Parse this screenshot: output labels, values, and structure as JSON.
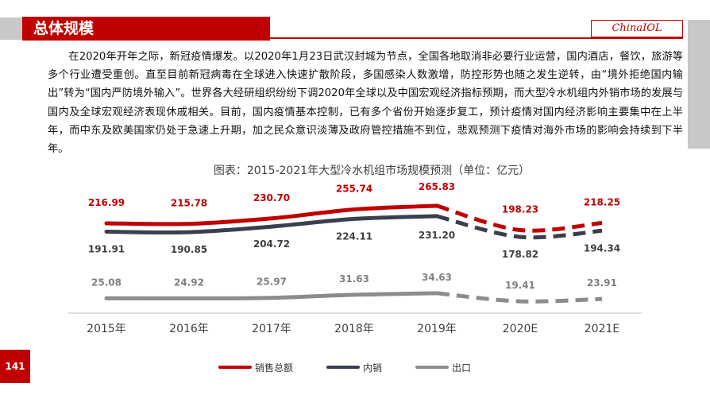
{
  "header": {
    "title": "总体规模",
    "logo": "ChinaIOL"
  },
  "paragraph": "在2020年开年之际，新冠疫情爆发。以2020年1月23日武汉封城为节点，全国各地取消非必要行业运营，国内酒店，餐饮，旅游等多个行业遭受重创。直至目前新冠病毒在全球进入快速扩散阶段，多国感染人数激增，防控形势也随之发生逆转，由“境外拒绝国内输出”转为“国内严防境外输入”。世界各大经研组织纷纷下调2020年全球以及中国宏观经济指标预期，而大型冷水机组内外销市场的发展与国内及全球宏观经济表现休戚相关。目前，国内疫情基本控制，已有多个省份开始逐步复工，预计疫情对国内经济影响主要集中在上半年，而中东及欧美国家仍处于急速上升期，加之民众意识淡薄及政府管控措施不到位，悲观预测下疫情对海外市场的影响会持续到下半年。",
  "page_number": "141",
  "colors": {
    "brand": "#c00000",
    "total": "#c00000",
    "domestic": "#3a3f4f",
    "export": "#8c8c8c"
  },
  "chart_data": {
    "type": "line",
    "title": "图表：2015-2021年大型冷水机组市场规模预测（单位：亿元）",
    "categories": [
      "2015年",
      "2016年",
      "2017年",
      "2018年",
      "2019年",
      "2020E",
      "2021E"
    ],
    "forecast_from_index": 4,
    "legend_position": "bottom",
    "grid": false,
    "series": [
      {
        "name": "销售总额",
        "values": [
          216.99,
          215.78,
          230.7,
          255.74,
          265.83,
          198.23,
          218.25
        ],
        "labels": [
          "216.99",
          "215.78",
          "230.70",
          "255.74",
          "265.83",
          "198.23",
          "218.25"
        ]
      },
      {
        "name": "内销",
        "values": [
          191.91,
          190.85,
          204.72,
          224.11,
          231.2,
          178.82,
          194.34
        ],
        "labels": [
          "191.91",
          "190.85",
          "204.72",
          "224.11",
          "231.20",
          "178.82",
          "194.34"
        ]
      },
      {
        "name": "出口",
        "values": [
          25.08,
          24.92,
          25.97,
          31.63,
          34.63,
          19.41,
          23.91
        ],
        "labels": [
          "25.08",
          "24.92",
          "25.97",
          "31.63",
          "34.63",
          "19.41",
          "23.91"
        ]
      }
    ]
  }
}
